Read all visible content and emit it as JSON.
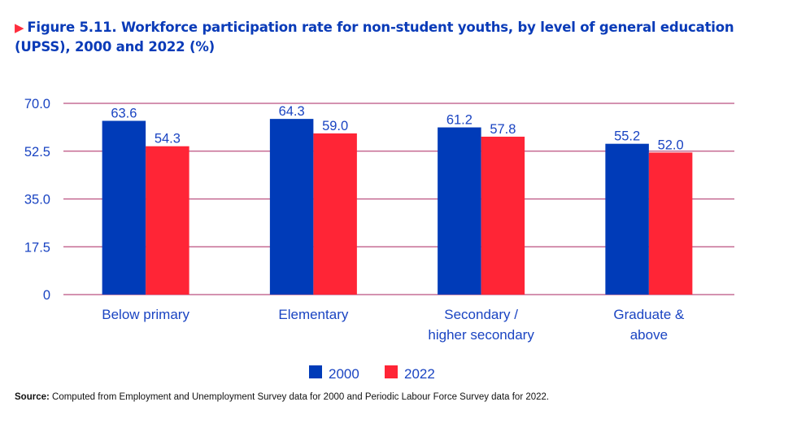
{
  "figure": {
    "marker_icon": "triangle-right-icon",
    "title": "Figure 5.11. Workforce participation rate for non-student youths, by level of general education (UPSS), 2000 and 2022 (%)",
    "source_label": "Source:",
    "source_text": " Computed from Employment and Unemployment Survey data for 2000 and Periodic Labour Force Survey data for 2022."
  },
  "colors": {
    "title": "#0a3bb8",
    "marker": "#ff2d3d",
    "series_2000": "#003bb8",
    "series_2022": "#ff2536",
    "gridline": "#b0336a",
    "label_text": "#1a44c2"
  },
  "chart_data": {
    "type": "bar",
    "title": "Workforce participation rate for non-student youths, by level of general education (UPSS), 2000 and 2022 (%)",
    "xlabel": "",
    "ylabel": "",
    "categories": [
      [
        "Below primary"
      ],
      [
        "Elementary"
      ],
      [
        "Secondary /",
        "higher secondary"
      ],
      [
        "Graduate &",
        "above"
      ]
    ],
    "series": [
      {
        "name": "2000",
        "color": "#003bb8",
        "values": [
          63.6,
          64.3,
          61.2,
          55.2
        ],
        "labels": [
          "63.6",
          "64.3",
          "61.2",
          "55.2"
        ]
      },
      {
        "name": "2022",
        "color": "#ff2536",
        "values": [
          54.3,
          59.0,
          57.8,
          52.0
        ],
        "labels": [
          "54.3",
          "59.0",
          "57.8",
          "52.0"
        ]
      }
    ],
    "ylim": [
      0,
      70
    ],
    "yticks": [
      0,
      17.5,
      35.0,
      52.5,
      70.0
    ],
    "ytick_labels": [
      "0",
      "17.5",
      "35.0",
      "52.5",
      "70.0"
    ],
    "grid": true,
    "legend": {
      "placement": "bottom-center",
      "entries": [
        "2000",
        "2022"
      ]
    }
  }
}
